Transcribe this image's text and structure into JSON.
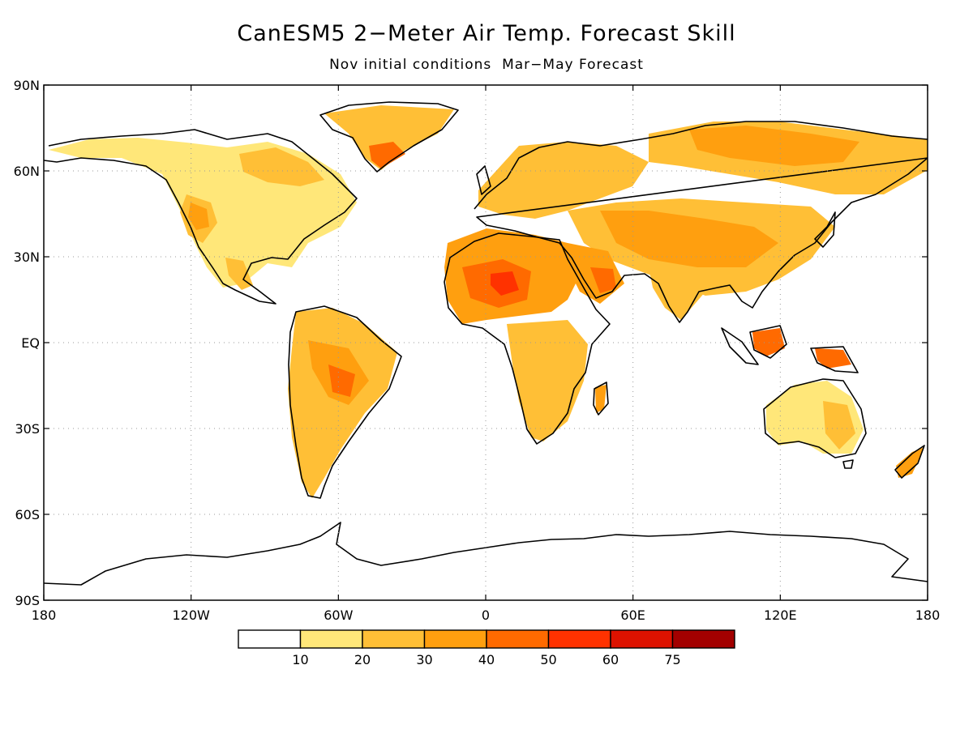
{
  "title": "CanESM5 2−Meter Air Temp. Forecast Skill",
  "subtitle": "Nov initial conditions  Mar−May Forecast",
  "map": {
    "projection": "equirectangular",
    "lon_range": [
      -180,
      180
    ],
    "lat_range": [
      -90,
      90
    ],
    "grid": true,
    "lat_ticks": [
      {
        "value": 90,
        "label": "90N"
      },
      {
        "value": 60,
        "label": "60N"
      },
      {
        "value": 30,
        "label": "30N"
      },
      {
        "value": 0,
        "label": "EQ"
      },
      {
        "value": -30,
        "label": "30S"
      },
      {
        "value": -60,
        "label": "60S"
      },
      {
        "value": -90,
        "label": "90S"
      }
    ],
    "lon_ticks": [
      {
        "value": -180,
        "label": "180"
      },
      {
        "value": -120,
        "label": "120W"
      },
      {
        "value": -60,
        "label": "60W"
      },
      {
        "value": 0,
        "label": "0"
      },
      {
        "value": 60,
        "label": "60E"
      },
      {
        "value": 120,
        "label": "120E"
      },
      {
        "value": 180,
        "label": "180"
      }
    ]
  },
  "colorbar": {
    "colors": [
      "#ffffff",
      "#ffe779",
      "#ffbf36",
      "#ff9f0f",
      "#ff6a00",
      "#ff3200",
      "#dd1200",
      "#a30000"
    ],
    "labels": [
      "10",
      "20",
      "30",
      "40",
      "50",
      "60",
      "75"
    ]
  }
}
